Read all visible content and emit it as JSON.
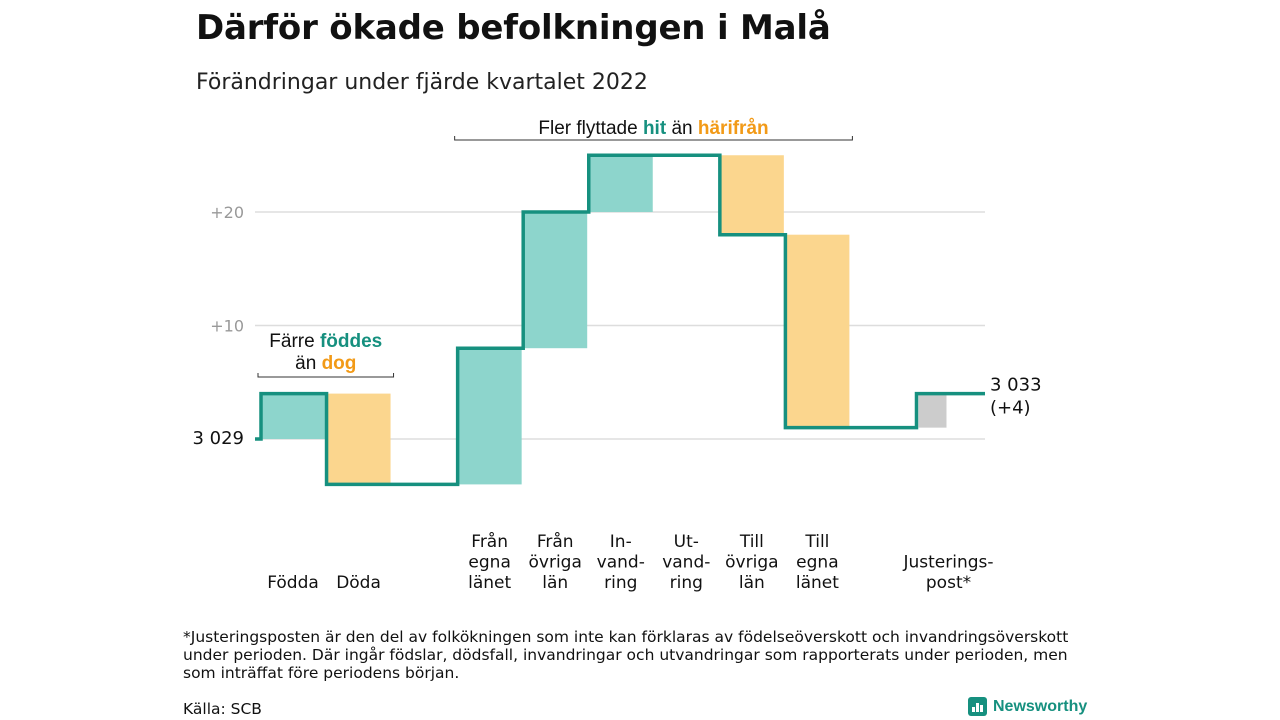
{
  "header": {
    "title": "Därför ökade befolkningen i Malå",
    "subtitle": "Förändringar under fjärde kvartalet 2022"
  },
  "colors": {
    "line": "#16907f",
    "increase": "#8dd5cc",
    "decrease": "#fbd68e",
    "adjustment": "#cccccc",
    "gridline": "#dddddd",
    "teal_text": "#16907f",
    "orange_text": "#f29a17"
  },
  "chart_data": {
    "type": "waterfall",
    "start": {
      "label": "3 029",
      "value": 0
    },
    "end": {
      "label_line1": "3 033",
      "label_line2": "(+4)",
      "value": 4
    },
    "ylim": [
      -4,
      25
    ],
    "yticks": [
      {
        "value": 20,
        "label": "+20"
      },
      {
        "value": 10,
        "label": "+10"
      }
    ],
    "steps": [
      {
        "label_lines": [
          "Födda"
        ],
        "change": 4
      },
      {
        "label_lines": [
          "Döda"
        ],
        "change": -8
      },
      {
        "label_lines": [],
        "change": 0,
        "spacer": true
      },
      {
        "label_lines": [
          "Från",
          "egna",
          "länet"
        ],
        "change": 12
      },
      {
        "label_lines": [
          "Från",
          "övriga",
          "län"
        ],
        "change": 12
      },
      {
        "label_lines": [
          "In-",
          "vand-",
          "ring"
        ],
        "change": 5
      },
      {
        "label_lines": [
          "Ut-",
          "vand-",
          "ring"
        ],
        "change": 0
      },
      {
        "label_lines": [
          "Till",
          "övriga",
          "län"
        ],
        "change": -7
      },
      {
        "label_lines": [
          "Till",
          "egna",
          "länet"
        ],
        "change": -17
      },
      {
        "label_lines": [],
        "change": 0,
        "spacer": true
      },
      {
        "label_lines": [
          "Justerings-",
          "post*"
        ],
        "change": 3,
        "adjustment": true
      }
    ],
    "annotations": [
      {
        "lines": [
          [
            {
              "text": "Färre ",
              "color": "dark"
            },
            {
              "text": "föddes",
              "color": "teal"
            }
          ],
          [
            {
              "text": "än ",
              "color": "dark"
            },
            {
              "text": "dog",
              "color": "orange"
            }
          ]
        ],
        "from_step": 0,
        "to_step": 1
      },
      {
        "lines": [
          [
            {
              "text": "Fler flyttade ",
              "color": "dark"
            },
            {
              "text": "hit",
              "color": "teal"
            },
            {
              "text": " än ",
              "color": "dark"
            },
            {
              "text": "härifrån",
              "color": "orange"
            }
          ]
        ],
        "from_step": 3,
        "to_step": 8
      }
    ]
  },
  "footnote": "*Justeringsposten är den del av folkökningen som inte kan förklaras av födelseöverskott och invandringsöverskott under perioden. Där ingår födslar, dödsfall, invandringar och utvandringar som rapporterats under perioden, men som inträffat före periodens början.",
  "source": "Källa: SCB",
  "brand": {
    "name": "Newsworthy"
  }
}
